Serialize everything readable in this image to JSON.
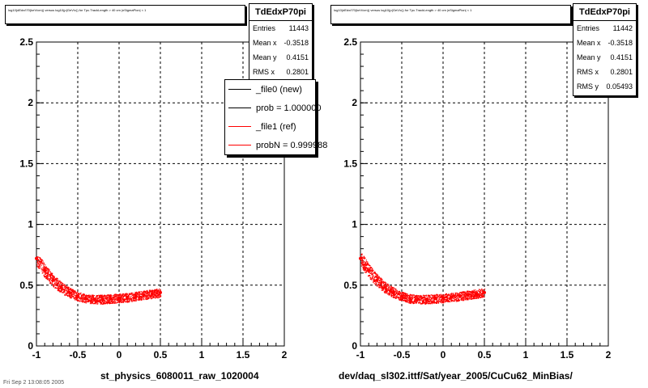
{
  "panels": [
    {
      "title": "log10(dEdx/I70(keV/cm)) versus log10(p(GeV/c)) for Tpc.TrackLength > 40 cm |nSigmaPion| < 1",
      "stats": {
        "name": "TdEdxP70pi",
        "rows": [
          {
            "label": "Entries",
            "value": "11443"
          },
          {
            "label": "Mean x",
            "value": "-0.3518"
          },
          {
            "label": "Mean y",
            "value": "0.4151"
          },
          {
            "label": "RMS x",
            "value": "0.2801"
          }
        ]
      },
      "legend": [
        {
          "label": "_file0 (new)",
          "color": "#000000"
        },
        {
          "label": "prob = 1.000000",
          "color": "#000000"
        },
        {
          "label": "_file1 (ref)",
          "color": "#ff0000"
        },
        {
          "label": "probN = 0.999988",
          "color": "#ff0000"
        }
      ],
      "xname": "st_physics_6080011_raw_1020004"
    },
    {
      "title": "log10(dEdx/I70(keV/cm)) versus log10(p(GeV/c)) for Tpc.TrackLength > 40 cm |nSigmaPion| < 1",
      "stats": {
        "name": "TdEdxP70pi",
        "rows": [
          {
            "label": "Entries",
            "value": "11442"
          },
          {
            "label": "Mean x",
            "value": "-0.3518"
          },
          {
            "label": "Mean y",
            "value": "0.4151"
          },
          {
            "label": "RMS x",
            "value": "0.2801"
          },
          {
            "label": "RMS y",
            "value": "0.05493"
          }
        ]
      },
      "xname": "dev/daq_sl302.ittf/Sat/year_2005/CuCu62_MinBias/"
    }
  ],
  "footer": "Fri Sep  2 13:08:05 2005",
  "chart_data": [
    {
      "type": "scatter",
      "xlim": [
        -1,
        2
      ],
      "ylim": [
        0,
        2.5
      ],
      "xticks": [
        "-1",
        "-0.5",
        "0",
        "0.5",
        "1",
        "1.5",
        "2"
      ],
      "yticks": [
        "0",
        "0.5",
        "1",
        "1.5",
        "2",
        "2.5"
      ],
      "grid": true,
      "series": [
        {
          "color": "#ff0000",
          "x": [
            -1.0,
            -0.9,
            -0.8,
            -0.7,
            -0.6,
            -0.5,
            -0.4,
            -0.3,
            -0.2,
            -0.1,
            0.0,
            0.1,
            0.2,
            0.3,
            0.4,
            0.5
          ],
          "y": [
            0.72,
            0.62,
            0.54,
            0.48,
            0.44,
            0.41,
            0.39,
            0.385,
            0.385,
            0.39,
            0.395,
            0.4,
            0.41,
            0.42,
            0.43,
            0.44
          ]
        }
      ]
    },
    {
      "type": "scatter",
      "xlim": [
        -1,
        2
      ],
      "ylim": [
        0,
        2.5
      ],
      "xticks": [
        "-1",
        "-0.5",
        "0",
        "0.5",
        "1",
        "1.5",
        "2"
      ],
      "yticks": [
        "0",
        "0.5",
        "1",
        "1.5",
        "2",
        "2.5"
      ],
      "grid": true,
      "series": [
        {
          "color": "#ff0000",
          "x": [
            -1.0,
            -0.9,
            -0.8,
            -0.7,
            -0.6,
            -0.5,
            -0.4,
            -0.3,
            -0.2,
            -0.1,
            0.0,
            0.1,
            0.2,
            0.3,
            0.4,
            0.5
          ],
          "y": [
            0.72,
            0.62,
            0.54,
            0.48,
            0.44,
            0.41,
            0.39,
            0.385,
            0.385,
            0.39,
            0.395,
            0.4,
            0.41,
            0.42,
            0.43,
            0.44
          ]
        }
      ]
    }
  ]
}
